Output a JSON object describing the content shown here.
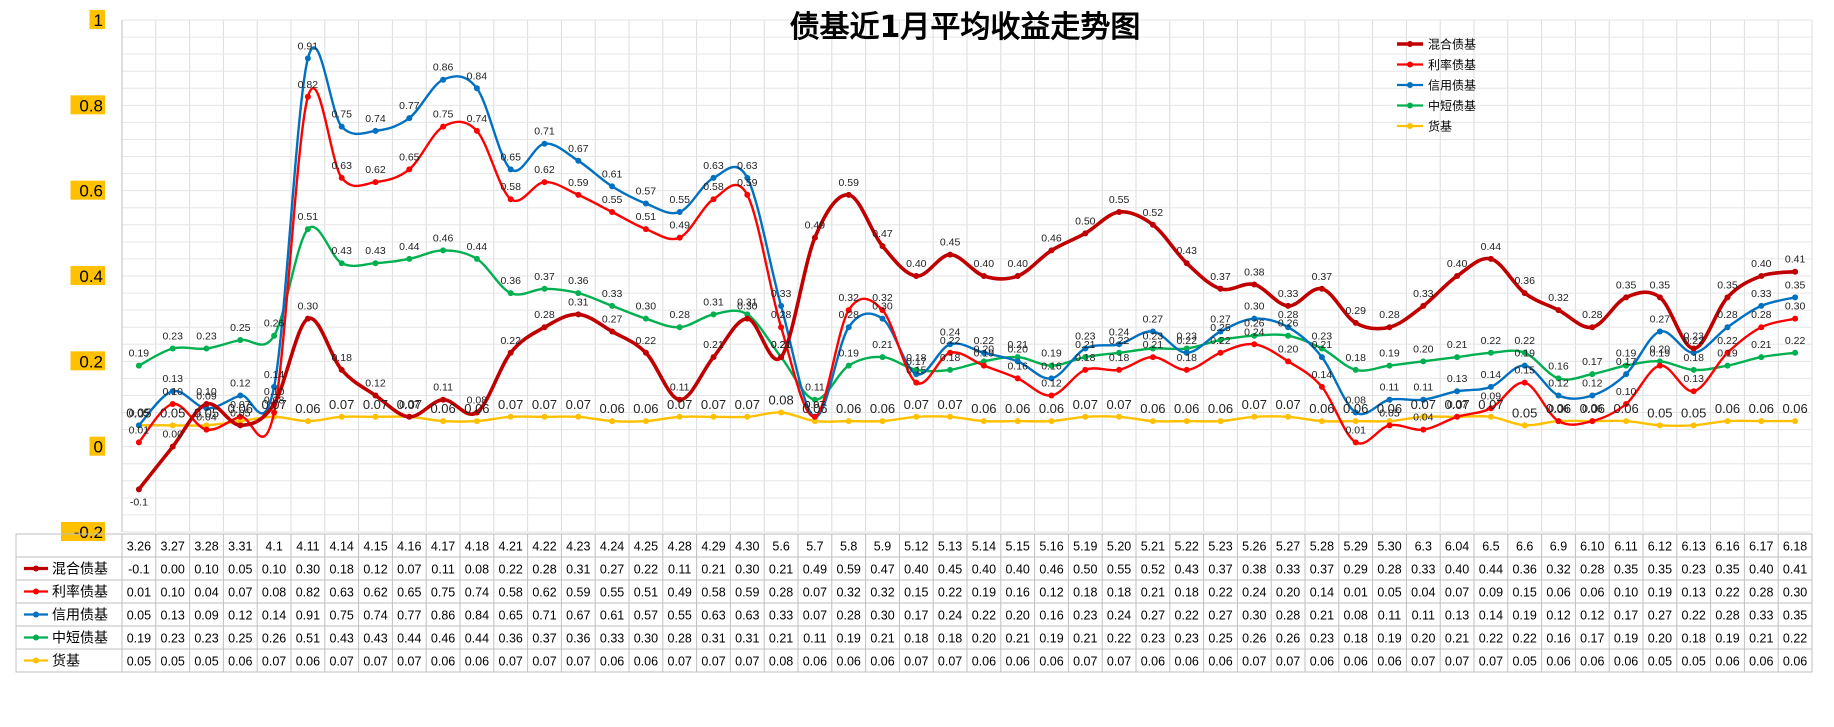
{
  "chart_data": {
    "type": "line",
    "title": "债基近1月平均收益走势图",
    "ylim": [
      -0.2,
      1
    ],
    "yticks": [
      "1",
      "0.8",
      "0.6",
      "0.4",
      "0.2",
      "0",
      "-0.2"
    ],
    "grid": true,
    "legend": "top-right",
    "categories": [
      "3.26",
      "3.27",
      "3.28",
      "3.31",
      "4.1",
      "4.11",
      "4.14",
      "4.15",
      "4.16",
      "4.17",
      "4.18",
      "4.21",
      "4.22",
      "4.23",
      "4.24",
      "4.25",
      "4.28",
      "4.29",
      "4.30",
      "5.6",
      "5.7",
      "5.8",
      "5.9",
      "5.12",
      "5.13",
      "5.14",
      "5.15",
      "5.16",
      "5.19",
      "5.20",
      "5.21",
      "5.22",
      "5.23",
      "5.26",
      "5.27",
      "5.28",
      "5.29",
      "5.30",
      "6.3",
      "6.04",
      "6.5",
      "6.6",
      "6.9",
      "6.10",
      "6.11",
      "6.12",
      "6.13",
      "6.16",
      "6.17",
      "6.18"
    ],
    "series": [
      {
        "name": "混合债基",
        "color": "#C00000",
        "values": [
          -0.1,
          0.0,
          0.1,
          0.05,
          0.1,
          0.3,
          0.18,
          0.12,
          0.07,
          0.11,
          0.08,
          0.22,
          0.28,
          0.31,
          0.27,
          0.22,
          0.11,
          0.21,
          0.3,
          0.21,
          0.49,
          0.59,
          0.47,
          0.4,
          0.45,
          0.4,
          0.4,
          0.46,
          0.5,
          0.55,
          0.52,
          0.43,
          0.37,
          0.38,
          0.33,
          0.37,
          0.29,
          0.28,
          0.33,
          0.4,
          0.44,
          0.36,
          0.32,
          0.28,
          0.35,
          0.35,
          0.23,
          0.35,
          0.4,
          0.41
        ]
      },
      {
        "name": "利率债基",
        "color": "#FF0000",
        "values": [
          0.01,
          0.1,
          0.04,
          0.07,
          0.08,
          0.82,
          0.63,
          0.62,
          0.65,
          0.75,
          0.74,
          0.58,
          0.62,
          0.59,
          0.55,
          0.51,
          0.49,
          0.58,
          0.59,
          0.28,
          0.07,
          0.32,
          0.32,
          0.15,
          0.22,
          0.19,
          0.16,
          0.12,
          0.18,
          0.18,
          0.21,
          0.18,
          0.22,
          0.24,
          0.2,
          0.14,
          0.01,
          0.05,
          0.04,
          0.07,
          0.09,
          0.15,
          0.06,
          0.06,
          0.1,
          0.19,
          0.13,
          0.22,
          0.28,
          0.3
        ]
      },
      {
        "name": "信用债基",
        "color": "#0070C0",
        "values": [
          0.05,
          0.13,
          0.09,
          0.12,
          0.14,
          0.91,
          0.75,
          0.74,
          0.77,
          0.86,
          0.84,
          0.65,
          0.71,
          0.67,
          0.61,
          0.57,
          0.55,
          0.63,
          0.63,
          0.33,
          0.07,
          0.28,
          0.3,
          0.17,
          0.24,
          0.22,
          0.2,
          0.16,
          0.23,
          0.24,
          0.27,
          0.22,
          0.27,
          0.3,
          0.28,
          0.21,
          0.08,
          0.11,
          0.11,
          0.13,
          0.14,
          0.19,
          0.12,
          0.12,
          0.17,
          0.27,
          0.22,
          0.28,
          0.33,
          0.35
        ]
      },
      {
        "name": "中短债基",
        "color": "#00B050",
        "values": [
          0.19,
          0.23,
          0.23,
          0.25,
          0.26,
          0.51,
          0.43,
          0.43,
          0.44,
          0.46,
          0.44,
          0.36,
          0.37,
          0.36,
          0.33,
          0.3,
          0.28,
          0.31,
          0.31,
          0.21,
          0.11,
          0.19,
          0.21,
          0.18,
          0.18,
          0.2,
          0.21,
          0.19,
          0.21,
          0.22,
          0.23,
          0.23,
          0.25,
          0.26,
          0.26,
          0.23,
          0.18,
          0.19,
          0.2,
          0.21,
          0.22,
          0.22,
          0.16,
          0.17,
          0.19,
          0.2,
          0.18,
          0.19,
          0.21,
          0.22
        ]
      },
      {
        "name": "货基",
        "color": "#FFC000",
        "values": [
          0.05,
          0.05,
          0.05,
          0.06,
          0.07,
          0.06,
          0.07,
          0.07,
          0.07,
          0.06,
          0.06,
          0.07,
          0.07,
          0.07,
          0.06,
          0.06,
          0.07,
          0.07,
          0.07,
          0.08,
          0.06,
          0.06,
          0.06,
          0.07,
          0.07,
          0.06,
          0.06,
          0.06,
          0.07,
          0.07,
          0.06,
          0.06,
          0.06,
          0.07,
          0.07,
          0.06,
          0.06,
          0.06,
          0.07,
          0.07,
          0.07,
          0.05,
          0.06,
          0.06,
          0.06,
          0.05,
          0.05,
          0.06,
          0.06,
          0.06
        ]
      }
    ],
    "table_values": {
      "混合债基": [
        "-0.1",
        "0.00",
        "0.10",
        "0.05",
        "0.10",
        "0.30",
        "0.18",
        "0.12",
        "0.07",
        "0.11",
        "0.08",
        "0.22",
        "0.28",
        "0.31",
        "0.27",
        "0.22",
        "0.11",
        "0.21",
        "0.30",
        "0.21",
        "0.49",
        "0.59",
        "0.47",
        "0.40",
        "0.45",
        "0.40",
        "0.40",
        "0.46",
        "0.50",
        "0.55",
        "0.52",
        "0.43",
        "0.37",
        "0.38",
        "0.33",
        "0.37",
        "0.29",
        "0.28",
        "0.33",
        "0.40",
        "0.44",
        "0.36",
        "0.32",
        "0.28",
        "0.35",
        "0.35",
        "0.23",
        "0.35",
        "0.40",
        "0.41"
      ]
    },
    "label_precision": 2
  }
}
